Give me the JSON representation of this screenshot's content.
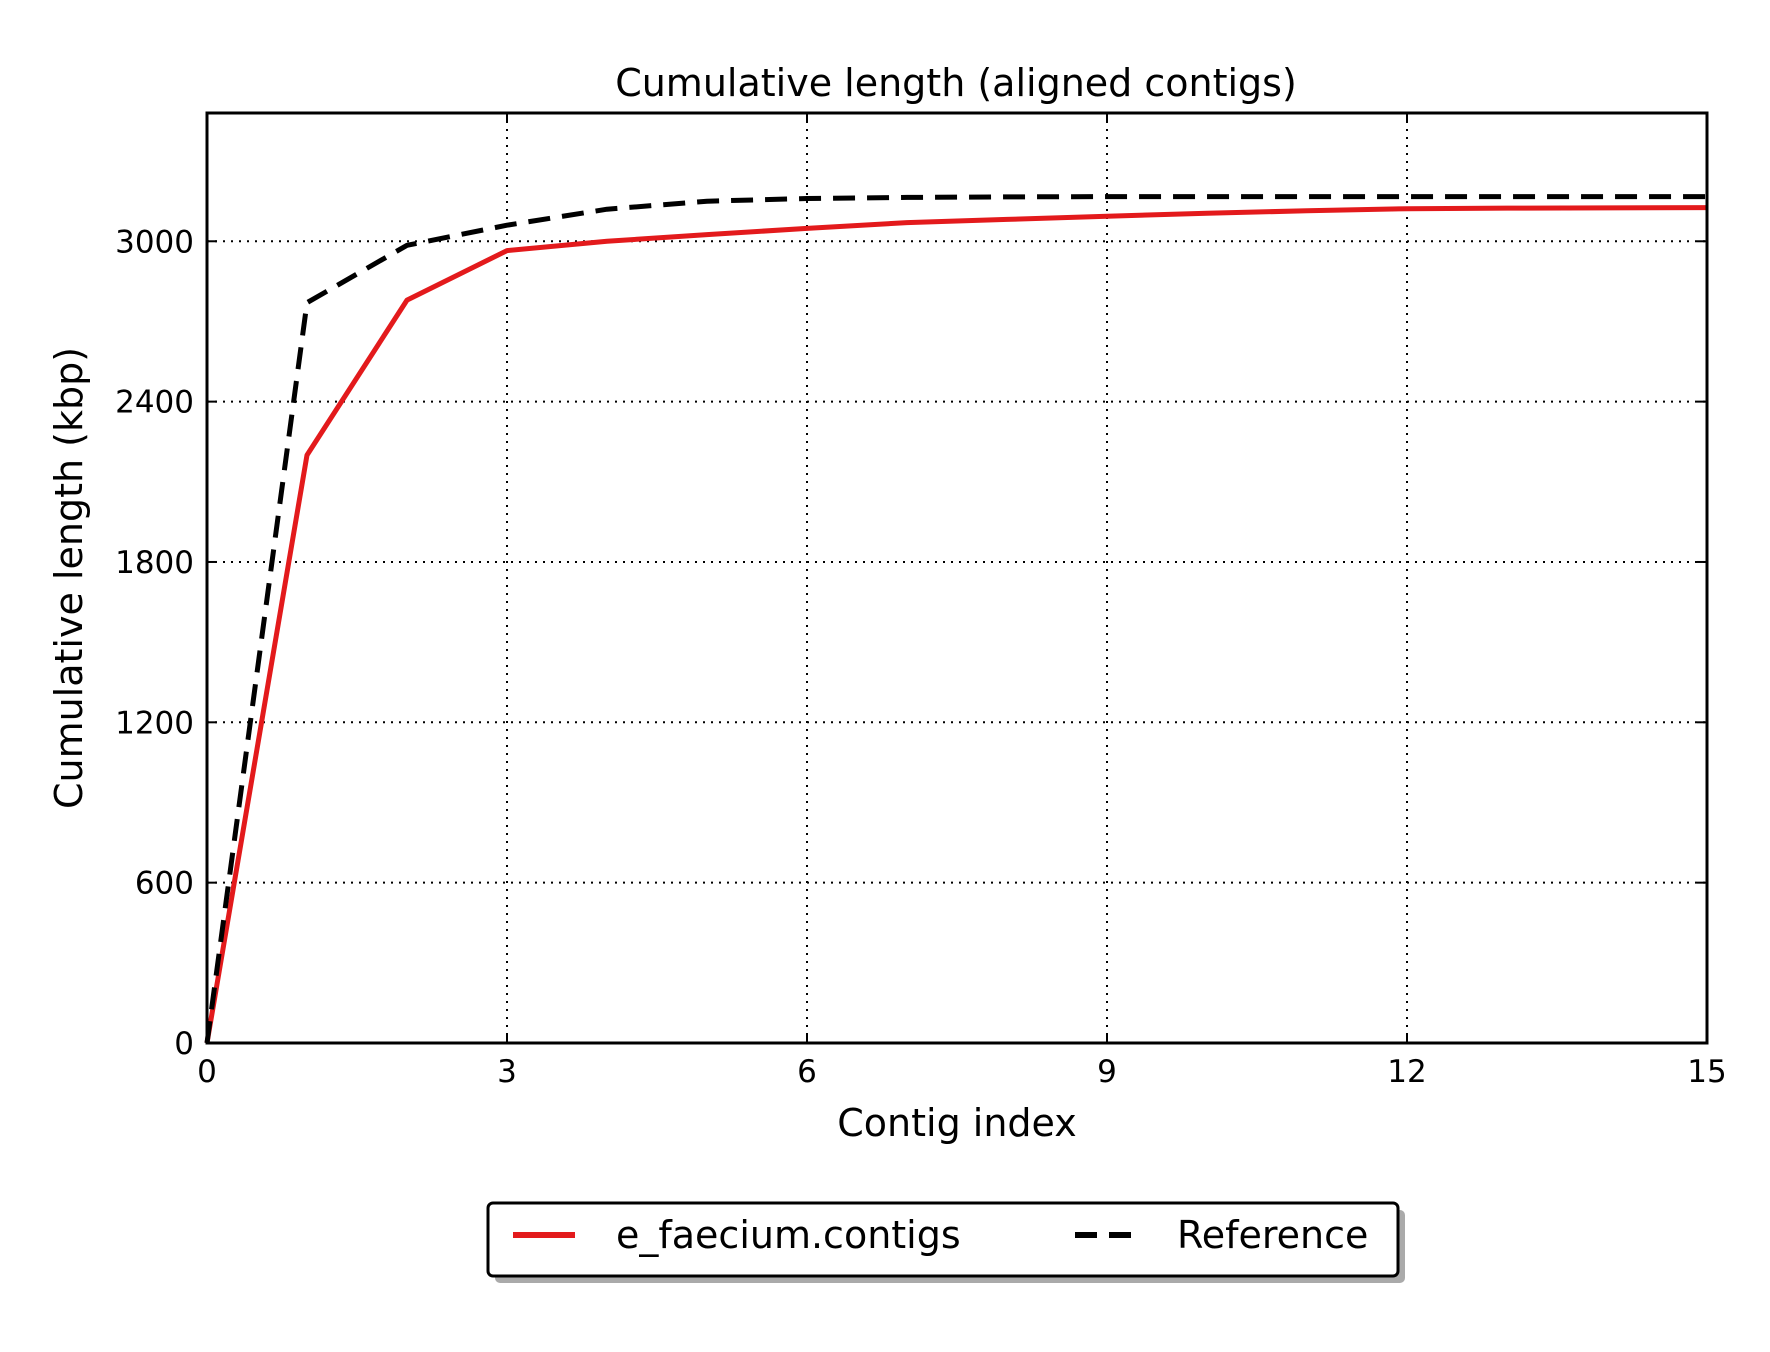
{
  "chart_data": {
    "type": "line",
    "title": "Cumulative length (aligned contigs)",
    "xlabel": "Contig index",
    "ylabel": "Cumulative length (kbp)",
    "xlim": [
      0,
      15
    ],
    "ylim": [
      0,
      3480
    ],
    "xticks": [
      0,
      3,
      6,
      9,
      12,
      15
    ],
    "xtick_labels": [
      "0",
      "3",
      "6",
      "9",
      "12",
      "15"
    ],
    "yticks": [
      0,
      600,
      1200,
      1800,
      2400,
      3000
    ],
    "ytick_labels": [
      "0",
      "600",
      "1200",
      "1800",
      "2400",
      "3000"
    ],
    "grid": true,
    "legend_position": "below",
    "series": [
      {
        "name": "e_faecium.contigs",
        "color": "#e31a1c",
        "style": "solid",
        "x": [
          0,
          1,
          2,
          3,
          4,
          5,
          6,
          7,
          8,
          9,
          10,
          11,
          12,
          13,
          14,
          15
        ],
        "y": [
          0,
          2200,
          2780,
          2965,
          3000,
          3025,
          3048,
          3070,
          3082,
          3094,
          3105,
          3114,
          3122,
          3124,
          3125,
          3126
        ]
      },
      {
        "name": "Reference",
        "color": "#000000",
        "style": "dashed",
        "x": [
          0,
          1,
          2,
          3,
          4,
          5,
          6,
          7,
          8,
          9,
          10,
          11,
          12,
          13,
          14,
          15
        ],
        "y": [
          0,
          2770,
          2985,
          3060,
          3120,
          3150,
          3160,
          3164,
          3166,
          3167,
          3167,
          3167,
          3167,
          3167,
          3167,
          3167
        ]
      }
    ]
  }
}
